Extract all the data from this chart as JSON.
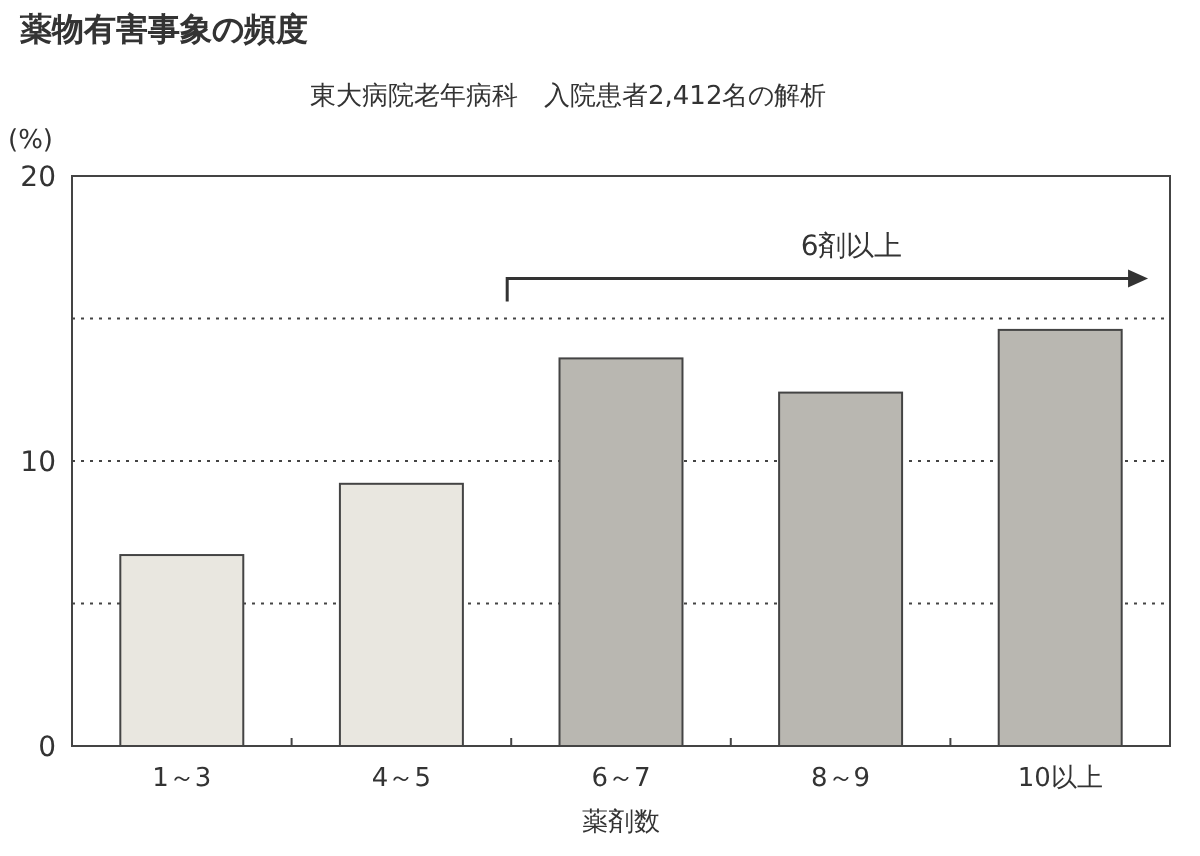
{
  "chart_data": {
    "type": "bar",
    "title": "薬物有害事象の頻度",
    "subtitle": "東大病院老年病科　入院患者2,412名の解析",
    "xlabel": "薬剤数",
    "ylabel": "(%)",
    "categories": [
      "1～3",
      "4～5",
      "6～7",
      "8～9",
      "10以上"
    ],
    "values": [
      6.7,
      9.2,
      13.6,
      12.4,
      14.6
    ],
    "colors": [
      "#e9e7e0",
      "#e9e7e0",
      "#b9b7b1",
      "#b9b7b1",
      "#b9b7b1"
    ],
    "ylim": [
      0,
      20
    ],
    "yticks": [
      0,
      {
        "value": 5,
        "label": null
      },
      10,
      {
        "value": 15,
        "label": null
      },
      20
    ],
    "grid": "y",
    "annotations": [
      "6剤以上"
    ]
  }
}
